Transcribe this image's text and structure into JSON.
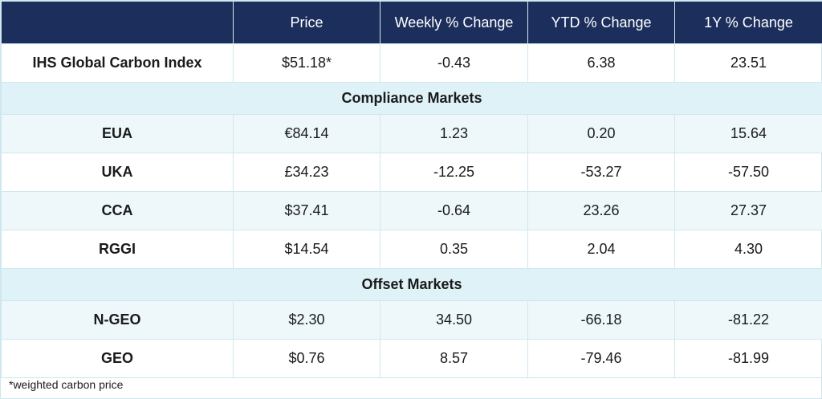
{
  "columns": [
    "Price",
    "Weekly % Change",
    "YTD % Change",
    "1Y % Change"
  ],
  "index_row": {
    "name": "IHS Global Carbon Index",
    "price": "$51.18*",
    "weekly": "-0.43",
    "ytd": "6.38",
    "oneyear": "23.51"
  },
  "sections": [
    {
      "title": "Compliance Markets",
      "rows": [
        {
          "name": "EUA",
          "price": "€84.14",
          "weekly": "1.23",
          "ytd": "0.20",
          "oneyear": "15.64"
        },
        {
          "name": "UKA",
          "price": "£34.23",
          "weekly": "-12.25",
          "ytd": "-53.27",
          "oneyear": "-57.50"
        },
        {
          "name": "CCA",
          "price": "$37.41",
          "weekly": "-0.64",
          "ytd": "23.26",
          "oneyear": "27.37"
        },
        {
          "name": "RGGI",
          "price": "$14.54",
          "weekly": "0.35",
          "ytd": "2.04",
          "oneyear": "4.30"
        }
      ]
    },
    {
      "title": "Offset Markets",
      "rows": [
        {
          "name": "N-GEO",
          "price": "$2.30",
          "weekly": "34.50",
          "ytd": "-66.18",
          "oneyear": "-81.22"
        },
        {
          "name": "GEO",
          "price": "$0.76",
          "weekly": "8.57",
          "ytd": "-79.46",
          "oneyear": "-81.99"
        }
      ]
    }
  ],
  "footnote": "*weighted carbon price",
  "colors": {
    "header_bg": "#1c2f5c",
    "section_bg": "#dff2f7",
    "alt_row_bg": "#eef8fb",
    "grid": "#cfe7ee"
  }
}
